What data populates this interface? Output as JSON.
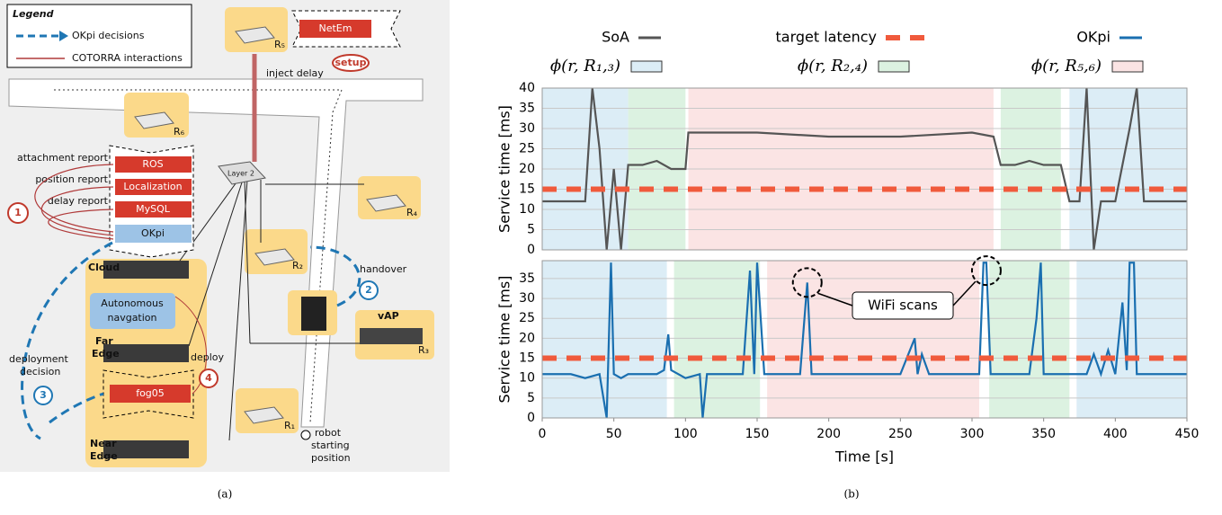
{
  "diagram": {
    "legend": {
      "title": "Legend",
      "items": [
        "OKpi decisions",
        "COTORRA interactions"
      ]
    },
    "netem": "NetEm",
    "setup": "setup",
    "inject_delay": "inject delay",
    "routers": [
      "R₁",
      "R₂",
      "R₃",
      "R₄",
      "R₅",
      "R₆"
    ],
    "reports": [
      "attachment report",
      "position report",
      "delay report"
    ],
    "stack": [
      "ROS",
      "Localization",
      "MySQL",
      "OKpi"
    ],
    "layer2": "Layer 2",
    "handover": "handover",
    "steps": [
      "1",
      "2",
      "3",
      "4"
    ],
    "cloud": "Cloud",
    "far_edge": [
      "Far",
      "Edge"
    ],
    "near_edge": [
      "Near",
      "Edge"
    ],
    "autonomous": [
      "Autonomous",
      "navgation"
    ],
    "deploy": "deploy",
    "fog05": "fog05",
    "deployment_decision": [
      "deployment",
      "decision"
    ],
    "vap": "vAP",
    "robot": [
      "robot",
      "starting",
      "position"
    ]
  },
  "captions": [
    "(a)",
    "(b)"
  ],
  "chart_data": [
    {
      "type": "line",
      "ylabel": "Service time [ms]",
      "xlim": [
        0,
        450
      ],
      "ylim": [
        0,
        40
      ],
      "yticks": [
        0,
        5,
        10,
        15,
        20,
        25,
        30,
        35,
        40
      ],
      "grid": true,
      "regions": [
        {
          "name": "ϕ(r, R₁,₃)",
          "color": "#dcedf6",
          "start": 0,
          "end": 60
        },
        {
          "name": "ϕ(r, R₂,₄)",
          "color": "#dcf2e1",
          "start": 60,
          "end": 100
        },
        {
          "name": "ϕ(r, R₅,₆)",
          "color": "#fbe4e4",
          "start": 102,
          "end": 315
        },
        {
          "color": "#dcf2e1",
          "start": 320,
          "end": 362
        },
        {
          "color": "#dcedf6",
          "start": 368,
          "end": 450
        }
      ],
      "x": [
        0,
        10,
        20,
        30,
        35,
        40,
        45,
        50,
        55,
        60,
        70,
        80,
        90,
        100,
        102,
        110,
        150,
        200,
        250,
        300,
        315,
        320,
        330,
        340,
        350,
        362,
        368,
        375,
        380,
        385,
        390,
        395,
        400,
        410,
        415,
        420,
        430,
        440,
        450
      ],
      "series": [
        {
          "name": "SoA",
          "color": "#555555",
          "values": [
            12,
            12,
            12,
            12,
            40,
            25,
            0,
            20,
            0,
            21,
            21,
            22,
            20,
            20,
            29,
            29,
            29,
            28,
            28,
            29,
            28,
            21,
            21,
            22,
            21,
            21,
            12,
            12,
            40,
            0,
            12,
            12,
            12,
            30,
            40,
            12,
            12,
            12,
            12
          ]
        },
        {
          "name": "target latency",
          "color": "#f05a3c",
          "style": "dashed",
          "x": [
            0,
            450
          ],
          "values": [
            15,
            15
          ]
        }
      ]
    },
    {
      "type": "line",
      "ylabel": "Service time [ms]",
      "xlabel": "Time [s]",
      "xlim": [
        0,
        450
      ],
      "xticks": [
        0,
        50,
        100,
        150,
        200,
        250,
        300,
        350,
        400,
        450
      ],
      "ylim": [
        0,
        39.5
      ],
      "yticks": [
        0,
        5,
        10,
        15,
        20,
        25,
        30,
        35
      ],
      "grid": true,
      "regions": [
        {
          "color": "#dcedf6",
          "start": 0,
          "end": 87
        },
        {
          "color": "#dcf2e1",
          "start": 92,
          "end": 152
        },
        {
          "color": "#fbe4e4",
          "start": 157,
          "end": 305
        },
        {
          "color": "#dcf2e1",
          "start": 312,
          "end": 368
        },
        {
          "color": "#dcedf6",
          "start": 373,
          "end": 450
        }
      ],
      "x": [
        0,
        10,
        20,
        30,
        40,
        45,
        48,
        50,
        55,
        60,
        70,
        80,
        85,
        88,
        90,
        100,
        110,
        112,
        115,
        120,
        130,
        140,
        145,
        148,
        150,
        155,
        160,
        170,
        180,
        185,
        188,
        190,
        200,
        220,
        250,
        260,
        262,
        265,
        270,
        300,
        305,
        308,
        310,
        313,
        316,
        320,
        330,
        340,
        345,
        348,
        350,
        355,
        360,
        365,
        368,
        370,
        380,
        385,
        390,
        395,
        400,
        405,
        408,
        410,
        413,
        415,
        420,
        430,
        440,
        450
      ],
      "series": [
        {
          "name": "OKpi",
          "color": "#1a6fb0",
          "values": [
            11,
            11,
            11,
            10,
            11,
            0,
            39,
            11,
            10,
            11,
            11,
            11,
            12,
            21,
            12,
            10,
            11,
            0,
            11,
            11,
            11,
            11,
            37,
            11,
            39,
            11,
            11,
            11,
            11,
            34,
            11,
            11,
            11,
            11,
            11,
            20,
            11,
            16,
            11,
            11,
            11,
            39,
            39,
            11,
            11,
            11,
            11,
            11,
            25,
            39,
            11,
            11,
            11,
            11,
            11,
            11,
            11,
            16,
            11,
            17,
            11,
            29,
            12,
            39,
            39,
            11,
            11,
            11,
            11,
            11
          ]
        },
        {
          "name": "target latency",
          "color": "#f05a3c",
          "style": "dashed",
          "x": [
            0,
            450
          ],
          "values": [
            15,
            15
          ]
        }
      ],
      "annotations": [
        {
          "text": "WiFi scans",
          "points": [
            {
              "x": 185,
              "y": 34
            },
            {
              "x": 310,
              "y": 37
            }
          ]
        }
      ]
    }
  ]
}
